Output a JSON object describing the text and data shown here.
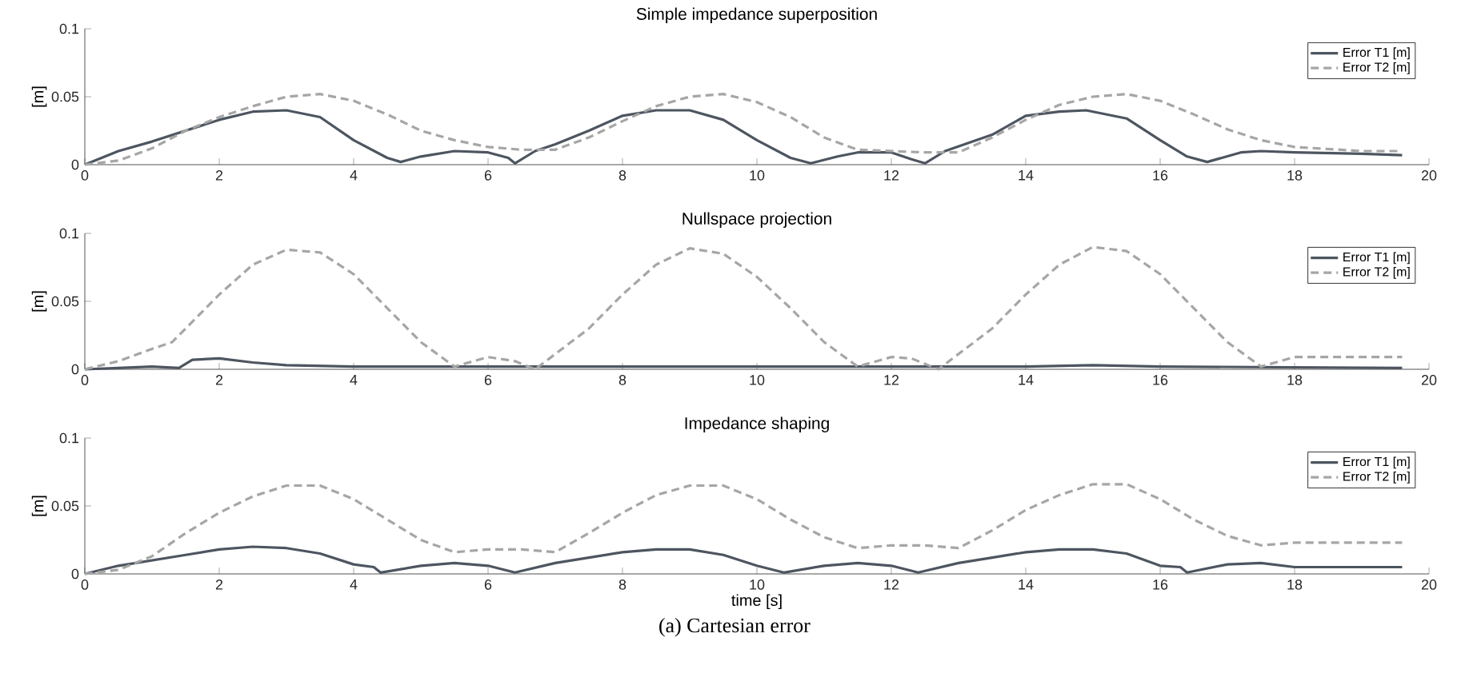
{
  "chart_data": [
    {
      "type": "line",
      "title": "Simple impedance superposition",
      "ylabel": "[m]",
      "xlim": [
        0,
        20
      ],
      "ylim": [
        0,
        0.1
      ],
      "xticks": [
        0,
        2,
        4,
        6,
        8,
        10,
        12,
        14,
        16,
        18,
        20
      ],
      "yticks": [
        0,
        0.05,
        0.1
      ],
      "legend": "top right",
      "series": [
        {
          "name": "Error T1 [m]",
          "color": "#4d5560",
          "line_style": "solid",
          "x": [
            0,
            0.5,
            1,
            1.5,
            2,
            2.5,
            3,
            3.5,
            4,
            4.5,
            4.7,
            5,
            5.5,
            6,
            6.3,
            6.4,
            6.7,
            7,
            7.5,
            8,
            8.5,
            9,
            9.5,
            10,
            10.5,
            10.8,
            11.2,
            11.5,
            12,
            12.3,
            12.5,
            12.8,
            13.5,
            14,
            14.5,
            14.9,
            15.5,
            16,
            16.4,
            16.7,
            17.2,
            17.5,
            18,
            19,
            19.6
          ],
          "values": [
            0,
            0.01,
            0.017,
            0.025,
            0.033,
            0.039,
            0.04,
            0.035,
            0.018,
            0.005,
            0.002,
            0.006,
            0.01,
            0.009,
            0.005,
            0.001,
            0.01,
            0.015,
            0.025,
            0.036,
            0.04,
            0.04,
            0.033,
            0.018,
            0.005,
            0.001,
            0.006,
            0.009,
            0.009,
            0.004,
            0.001,
            0.01,
            0.022,
            0.036,
            0.039,
            0.04,
            0.034,
            0.018,
            0.006,
            0.002,
            0.009,
            0.01,
            0.009,
            0.008,
            0.007
          ]
        },
        {
          "name": "Error T2 [m]",
          "color": "#a6a6a6",
          "line_style": "dashed",
          "x": [
            0,
            0.5,
            1,
            1.5,
            2,
            2.5,
            3,
            3.5,
            4,
            4.5,
            5,
            5.5,
            6,
            6.5,
            7,
            7.5,
            8,
            8.5,
            9,
            9.5,
            10,
            10.5,
            11,
            11.5,
            12,
            12.5,
            13,
            13.5,
            14,
            14.5,
            15,
            15.5,
            16,
            16.5,
            17,
            17.5,
            18,
            19,
            19.6
          ],
          "values": [
            0,
            0.003,
            0.012,
            0.025,
            0.035,
            0.043,
            0.05,
            0.052,
            0.047,
            0.037,
            0.025,
            0.018,
            0.013,
            0.011,
            0.011,
            0.02,
            0.032,
            0.043,
            0.05,
            0.052,
            0.046,
            0.035,
            0.02,
            0.011,
            0.01,
            0.009,
            0.009,
            0.02,
            0.033,
            0.044,
            0.05,
            0.052,
            0.047,
            0.037,
            0.026,
            0.018,
            0.013,
            0.01,
            0.01
          ]
        }
      ]
    },
    {
      "type": "line",
      "title": "Nullspace projection",
      "ylabel": "[m]",
      "xlim": [
        0,
        20
      ],
      "ylim": [
        0,
        0.1
      ],
      "xticks": [
        0,
        2,
        4,
        6,
        8,
        10,
        12,
        14,
        16,
        18,
        20
      ],
      "yticks": [
        0,
        0.05,
        0.1
      ],
      "legend": "top right",
      "series": [
        {
          "name": "Error T1 [m]",
          "color": "#4d5560",
          "line_style": "solid",
          "x": [
            0,
            0.5,
            1,
            1.4,
            1.6,
            2,
            2.5,
            3,
            4,
            6,
            7,
            8,
            9,
            10,
            12,
            14,
            15,
            16,
            19.6
          ],
          "values": [
            0,
            0.001,
            0.002,
            0.001,
            0.007,
            0.008,
            0.005,
            0.003,
            0.002,
            0.002,
            0.002,
            0.002,
            0.002,
            0.002,
            0.002,
            0.002,
            0.003,
            0.002,
            0.001
          ]
        },
        {
          "name": "Error T2 [m]",
          "color": "#a6a6a6",
          "line_style": "dashed",
          "x": [
            0,
            0.5,
            1,
            1.3,
            2,
            2.5,
            3,
            3.5,
            4,
            4.5,
            5,
            5.5,
            6,
            6.4,
            6.7,
            7.5,
            8,
            8.5,
            9,
            9.5,
            10,
            10.5,
            11,
            11.5,
            12,
            12.3,
            12.7,
            13.5,
            14,
            14.5,
            15,
            15.5,
            16,
            16.5,
            17,
            17.5,
            18,
            19,
            19.6
          ],
          "values": [
            0,
            0.006,
            0.015,
            0.02,
            0.055,
            0.077,
            0.088,
            0.086,
            0.07,
            0.045,
            0.02,
            0.002,
            0.009,
            0.006,
            0,
            0.03,
            0.055,
            0.077,
            0.089,
            0.085,
            0.068,
            0.045,
            0.02,
            0.002,
            0.009,
            0.008,
            0,
            0.03,
            0.055,
            0.077,
            0.09,
            0.087,
            0.07,
            0.045,
            0.02,
            0.002,
            0.009,
            0.009,
            0.009
          ]
        }
      ]
    },
    {
      "type": "line",
      "title": "Impedance shaping",
      "xlabel": "time [s]",
      "ylabel": "[m]",
      "xlim": [
        0,
        20
      ],
      "ylim": [
        0,
        0.1
      ],
      "xticks": [
        0,
        2,
        4,
        6,
        8,
        10,
        12,
        14,
        16,
        18,
        20
      ],
      "yticks": [
        0,
        0.05,
        0.1
      ],
      "legend": "top right",
      "annotations": [
        "(a) Cartesian error"
      ],
      "series": [
        {
          "name": "Error T1 [m]",
          "color": "#4d5560",
          "line_style": "solid",
          "x": [
            0,
            0.5,
            1,
            1.5,
            2,
            2.5,
            3,
            3.5,
            4,
            4.3,
            4.4,
            5,
            5.5,
            6,
            6.4,
            7,
            7.5,
            8,
            8.5,
            9,
            9.5,
            10,
            10.4,
            11,
            11.5,
            12,
            12.4,
            13,
            13.5,
            14,
            14.5,
            15,
            15.5,
            16,
            16.3,
            16.4,
            17,
            17.5,
            18,
            19,
            19.6
          ],
          "values": [
            0,
            0.006,
            0.01,
            0.014,
            0.018,
            0.02,
            0.019,
            0.015,
            0.007,
            0.005,
            0.001,
            0.006,
            0.008,
            0.006,
            0.001,
            0.008,
            0.012,
            0.016,
            0.018,
            0.018,
            0.014,
            0.006,
            0.001,
            0.006,
            0.008,
            0.006,
            0.001,
            0.008,
            0.012,
            0.016,
            0.018,
            0.018,
            0.015,
            0.006,
            0.005,
            0.001,
            0.007,
            0.008,
            0.005,
            0.005,
            0.005
          ]
        },
        {
          "name": "Error T2 [m]",
          "color": "#a6a6a6",
          "line_style": "dashed",
          "x": [
            0,
            0.5,
            1,
            1.5,
            2,
            2.5,
            3,
            3.5,
            4,
            4.5,
            5,
            5.5,
            6,
            6.5,
            7,
            7.5,
            8,
            8.5,
            9,
            9.5,
            10,
            10.5,
            11,
            11.5,
            12,
            12.5,
            13,
            13.5,
            14,
            14.5,
            15,
            15.5,
            16,
            16.5,
            17,
            17.5,
            18,
            19,
            19.6
          ],
          "values": [
            0,
            0.003,
            0.013,
            0.03,
            0.045,
            0.057,
            0.065,
            0.065,
            0.055,
            0.04,
            0.025,
            0.016,
            0.018,
            0.018,
            0.016,
            0.03,
            0.045,
            0.058,
            0.065,
            0.065,
            0.055,
            0.04,
            0.027,
            0.019,
            0.021,
            0.021,
            0.019,
            0.032,
            0.047,
            0.058,
            0.066,
            0.066,
            0.055,
            0.04,
            0.028,
            0.021,
            0.023,
            0.023,
            0.023
          ]
        }
      ]
    }
  ]
}
